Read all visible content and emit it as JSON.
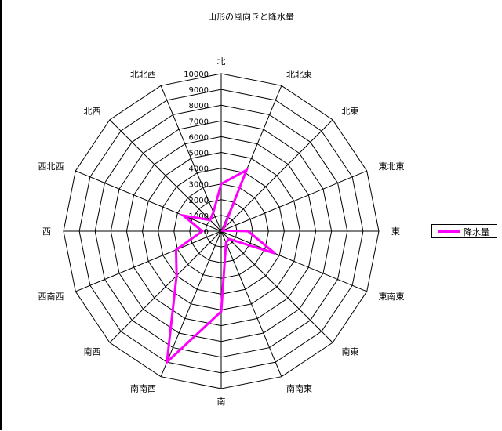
{
  "chart_data": {
    "type": "radar",
    "title": "山形の風向きと降水量",
    "categories": [
      "北",
      "北北東",
      "北東",
      "東北東",
      "東",
      "東南東",
      "南東",
      "南南東",
      "南",
      "南南西",
      "南西",
      "西南西",
      "西",
      "西北西",
      "北西",
      "北北西"
    ],
    "series": [
      {
        "name": "降水量",
        "values": [
          3000,
          4200,
          200,
          100,
          1700,
          3700,
          700,
          800,
          5100,
          9000,
          4000,
          3100,
          1200,
          2600,
          1000,
          1300
        ],
        "color": "#ff00ff"
      }
    ],
    "rlim": [
      0,
      10000
    ],
    "ticks": [
      0,
      1000,
      2000,
      3000,
      4000,
      5000,
      6000,
      7000,
      8000,
      9000,
      10000
    ],
    "grid": true,
    "legend_position": "right"
  }
}
